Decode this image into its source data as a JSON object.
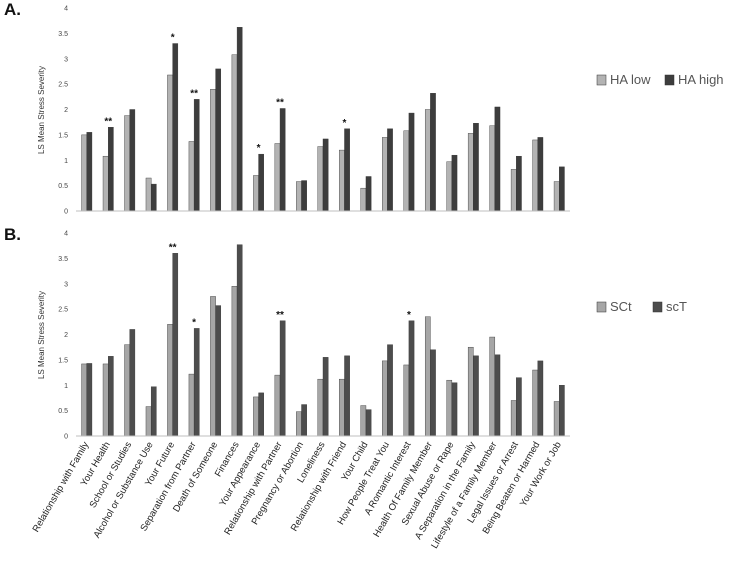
{
  "panel_labels": [
    "A.",
    "B."
  ],
  "chart_data": [
    {
      "type": "bar",
      "panel": "A.",
      "ylabel": "LS Mean Stress Severity",
      "ylim": [
        0,
        4
      ],
      "yticks": [
        "0",
        "0.5",
        "1",
        "1.5",
        "2",
        "2.5",
        "3",
        "3.5",
        "4"
      ],
      "grid": false,
      "legend_position": "right",
      "categories": [
        "Relationship with Family",
        "Your Health",
        "School or Studies",
        "Alcohol or Substance Use",
        "Your Future",
        "Separation from Partner",
        "Death of Someone",
        "Finances",
        "Your Appearance",
        "Relationship with Partner",
        "Pregnancy or Abortion",
        "Loneliness",
        "Relationship with Friend",
        "Your Child",
        "How People Treat You",
        "A Romantic Interest",
        "Health Of Family Member",
        "Sexual Abuse or Rape",
        "A Separation in the Family",
        "Lifestyle of a Family Member",
        "Legal Issues or Arrest",
        "Being Beaten or Harmed",
        "Your Work or Job"
      ],
      "series": [
        {
          "name": "HA low",
          "color": "#b3b3b3",
          "values": [
            1.5,
            1.08,
            1.88,
            0.65,
            2.68,
            1.37,
            2.4,
            3.08,
            0.7,
            1.33,
            0.58,
            1.27,
            1.2,
            0.45,
            1.45,
            1.58,
            2.0,
            0.97,
            1.53,
            1.68,
            0.82,
            1.4,
            0.58
          ]
        },
        {
          "name": "HA high",
          "color": "#3d3d3d",
          "values": [
            1.55,
            1.65,
            2.0,
            0.53,
            3.3,
            2.2,
            2.8,
            3.62,
            1.12,
            2.02,
            0.6,
            1.42,
            1.62,
            0.68,
            1.62,
            1.93,
            2.32,
            1.1,
            1.73,
            2.05,
            1.08,
            1.45,
            0.87
          ]
        }
      ],
      "annotations": [
        {
          "category": "Your Health",
          "text": "**"
        },
        {
          "category": "Your Future",
          "text": "*"
        },
        {
          "category": "Separation from Partner",
          "text": "**"
        },
        {
          "category": "Your Appearance",
          "text": "*"
        },
        {
          "category": "Relationship with Partner",
          "text": "**"
        },
        {
          "category": "Relationship with Friend",
          "text": "*"
        }
      ]
    },
    {
      "type": "bar",
      "panel": "B.",
      "ylabel": "LS Mean Stress Severity",
      "ylim": [
        0,
        4
      ],
      "yticks": [
        "0",
        "0.5",
        "1",
        "1.5",
        "2",
        "2.5",
        "3",
        "3.5",
        "4"
      ],
      "grid": false,
      "legend_position": "right",
      "categories": [
        "Relationship with Family",
        "Your Health",
        "School or Studies",
        "Alcohol or Substance Use",
        "Your Future",
        "Separation from Partner",
        "Death of Someone",
        "Finances",
        "Your Appearance",
        "Relationship with Partner",
        "Pregnancy or Abortion",
        "Loneliness",
        "Relationship with Friend",
        "Your Child",
        "How People Treat You",
        "A Romantic Interest",
        "Health Of Family Member",
        "Sexual Abuse or Rape",
        "A Separation in the Family",
        "Lifestyle of a Family Member",
        "Legal Issues or Arrest",
        "Being Beaten or Harmed",
        "Your Work or Job"
      ],
      "series": [
        {
          "name": "SCt",
          "color": "#a6a6a6",
          "values": [
            1.42,
            1.42,
            1.8,
            0.58,
            2.2,
            1.22,
            2.75,
            2.95,
            0.77,
            1.2,
            0.48,
            1.12,
            1.12,
            0.6,
            1.48,
            1.4,
            2.35,
            1.1,
            1.75,
            1.95,
            0.7,
            1.3,
            0.68
          ]
        },
        {
          "name": "scT",
          "color": "#4d4d4d",
          "values": [
            1.43,
            1.57,
            2.1,
            0.97,
            3.6,
            2.12,
            2.57,
            3.77,
            0.85,
            2.27,
            0.62,
            1.55,
            1.58,
            0.52,
            1.8,
            2.27,
            1.7,
            1.05,
            1.58,
            1.6,
            1.15,
            1.48,
            1.0
          ]
        }
      ],
      "annotations": [
        {
          "category": "Your Future",
          "text": "**"
        },
        {
          "category": "Separation from Partner",
          "text": "*"
        },
        {
          "category": "Relationship with Partner",
          "text": "**"
        },
        {
          "category": "A Romantic Interest",
          "text": "*"
        }
      ]
    }
  ]
}
